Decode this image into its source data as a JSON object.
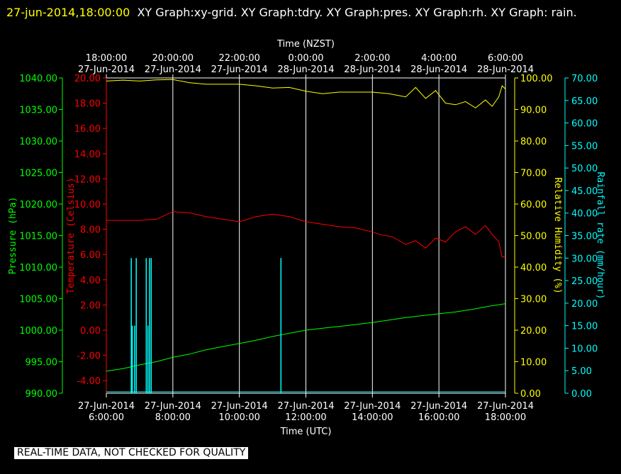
{
  "header": {
    "timestamp": "27-jun-2014,18:00:00",
    "graphs": "XY Graph:xy-grid.  XY Graph:tdry.  XY Graph:pres.  XY Graph:rh.  XY Graph: rain."
  },
  "footer": {
    "notice": "REAL-TIME DATA, NOT CHECKED FOR QUALITY"
  },
  "colors": {
    "pressure": "#00ff00",
    "temperature": "#ff0000",
    "humidity": "#ffff00",
    "rain": "#00ffff",
    "grid": "#ffffff",
    "background": "#000000"
  },
  "chart_data": {
    "type": "line",
    "top_axis": {
      "title": "Time (NZST)",
      "ticks": [
        {
          "time": "18:00:00",
          "date": "27-Jun-2014"
        },
        {
          "time": "20:00:00",
          "date": "27-Jun-2014"
        },
        {
          "time": "22:00:00",
          "date": "27-Jun-2014"
        },
        {
          "time": "0:00:00",
          "date": "28-Jun-2014"
        },
        {
          "time": "2:00:00",
          "date": "28-Jun-2014"
        },
        {
          "time": "4:00:00",
          "date": "28-Jun-2014"
        },
        {
          "time": "6:00:00",
          "date": "28-Jun-2014"
        }
      ]
    },
    "bottom_axis": {
      "title": "Time (UTC)",
      "ticks": [
        {
          "date": "27-Jun-2014",
          "time": "6:00:00"
        },
        {
          "date": "27-Jun-2014",
          "time": "8:00:00"
        },
        {
          "date": "27-Jun-2014",
          "time": "10:00:00"
        },
        {
          "date": "27-Jun-2014",
          "time": "12:00:00"
        },
        {
          "date": "27-Jun-2014",
          "time": "14:00:00"
        },
        {
          "date": "27-Jun-2014",
          "time": "16:00:00"
        },
        {
          "date": "27-Jun-2014",
          "time": "18:00:00"
        }
      ],
      "xlim": [
        6,
        18
      ]
    },
    "axes": {
      "pressure": {
        "label": "Pressure (hPa)",
        "ylim": [
          990,
          1040
        ],
        "ticks": [
          "990.00",
          "995.00",
          "1000.00",
          "1005.00",
          "1010.00",
          "1015.00",
          "1020.00",
          "1025.00",
          "1030.00",
          "1035.00",
          "1040.00"
        ]
      },
      "temperature": {
        "label": "Temperature (Celsius)",
        "ylim": [
          -5,
          20
        ],
        "ticks": [
          "-4.00",
          "-2.00",
          "0.00",
          "2.00",
          "4.00",
          "6.00",
          "8.00",
          "10.00",
          "12.00",
          "14.00",
          "16.00",
          "18.00",
          "20.00"
        ]
      },
      "humidity": {
        "label": "Relative Humidity (%)",
        "ylim": [
          0,
          100
        ],
        "ticks": [
          "0.00",
          "10.00",
          "20.00",
          "30.00",
          "40.00",
          "50.00",
          "60.00",
          "70.00",
          "80.00",
          "90.00",
          "100.00"
        ]
      },
      "rain": {
        "label": "Rainfall rate (mm/hour)",
        "ylim": [
          0,
          70
        ],
        "ticks": [
          "0.00",
          "5.00",
          "10.00",
          "15.00",
          "20.00",
          "25.00",
          "30.00",
          "35.00",
          "40.00",
          "45.00",
          "50.00",
          "55.00",
          "60.00",
          "65.00",
          "70.00"
        ]
      }
    },
    "series": [
      {
        "name": "pres",
        "axis": "pressure",
        "x": [
          6.0,
          6.5,
          7.0,
          7.5,
          8.0,
          8.5,
          9.0,
          9.5,
          10.0,
          10.5,
          11.0,
          11.5,
          12.0,
          12.5,
          13.0,
          13.5,
          14.0,
          14.5,
          15.0,
          15.5,
          16.0,
          16.5,
          17.0,
          17.5,
          18.0
        ],
        "y": [
          993.5,
          993.9,
          994.5,
          995.0,
          995.7,
          996.2,
          996.9,
          997.4,
          997.9,
          998.4,
          999.0,
          999.5,
          1000.0,
          1000.3,
          1000.6,
          1000.9,
          1001.2,
          1001.6,
          1002.0,
          1002.3,
          1002.6,
          1002.9,
          1003.3,
          1003.8,
          1004.2
        ]
      },
      {
        "name": "tdry",
        "axis": "temperature",
        "x": [
          6.0,
          6.5,
          7.0,
          7.5,
          8.0,
          8.5,
          9.0,
          9.5,
          10.0,
          10.5,
          11.0,
          11.5,
          12.0,
          12.5,
          13.0,
          13.5,
          14.0,
          14.2,
          14.6,
          15.0,
          15.3,
          15.6,
          15.9,
          16.2,
          16.5,
          16.8,
          17.1,
          17.4,
          17.6,
          17.8,
          17.9,
          18.0
        ],
        "y": [
          8.7,
          8.7,
          8.7,
          8.8,
          9.4,
          9.3,
          9.0,
          8.8,
          8.6,
          9.0,
          9.2,
          9.0,
          8.6,
          8.4,
          8.2,
          8.1,
          7.8,
          7.6,
          7.4,
          6.8,
          7.1,
          6.5,
          7.3,
          7.0,
          7.8,
          8.2,
          7.6,
          8.3,
          7.6,
          7.0,
          5.8,
          5.9
        ]
      },
      {
        "name": "rh",
        "axis": "humidity",
        "x": [
          6.0,
          6.5,
          7.0,
          7.5,
          8.0,
          8.5,
          9.0,
          9.5,
          10.0,
          10.5,
          11.0,
          11.5,
          12.0,
          12.5,
          13.0,
          13.5,
          14.0,
          14.5,
          15.0,
          15.3,
          15.6,
          15.9,
          16.2,
          16.5,
          16.8,
          17.1,
          17.4,
          17.6,
          17.8,
          17.9,
          18.0
        ],
        "y": [
          99.0,
          99.3,
          99.0,
          99.4,
          99.5,
          98.5,
          98.0,
          98.0,
          98.0,
          97.5,
          96.8,
          97.0,
          95.8,
          95.0,
          95.5,
          95.5,
          95.5,
          95.0,
          94.0,
          97.0,
          93.5,
          96.0,
          92.0,
          91.5,
          92.5,
          90.5,
          93.0,
          91.0,
          94.0,
          97.5,
          96.5
        ]
      },
      {
        "name": "rain",
        "axis": "rain",
        "x": [
          6.75,
          6.78,
          6.85,
          6.9,
          7.2,
          7.25,
          7.3,
          7.35,
          11.25
        ],
        "y": [
          30.0,
          15.0,
          15.0,
          30.0,
          30.0,
          15.0,
          30.0,
          30.0,
          30.0
        ],
        "baseline": 0.0
      }
    ]
  }
}
